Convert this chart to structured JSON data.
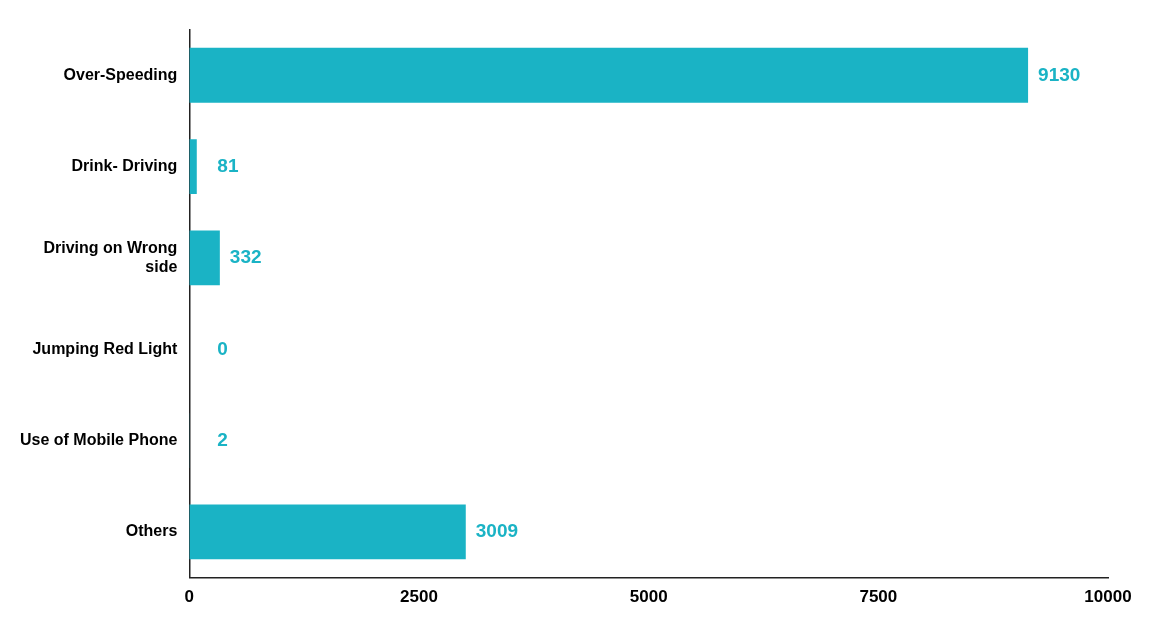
{
  "chart_data": {
    "type": "bar",
    "orientation": "horizontal",
    "categories": [
      "Over-Speeding",
      "Drink- Driving",
      "Driving on Wrong side",
      "Jumping Red Light",
      "Use of Mobile Phone",
      "Others"
    ],
    "values": [
      9130,
      81,
      332,
      0,
      2,
      3009
    ],
    "color": "#1ab3c5",
    "xlim": [
      0,
      10000
    ],
    "xticks": [
      0,
      2500,
      5000,
      7500,
      10000
    ],
    "grid": false,
    "legend": false,
    "data_labels": true
  }
}
